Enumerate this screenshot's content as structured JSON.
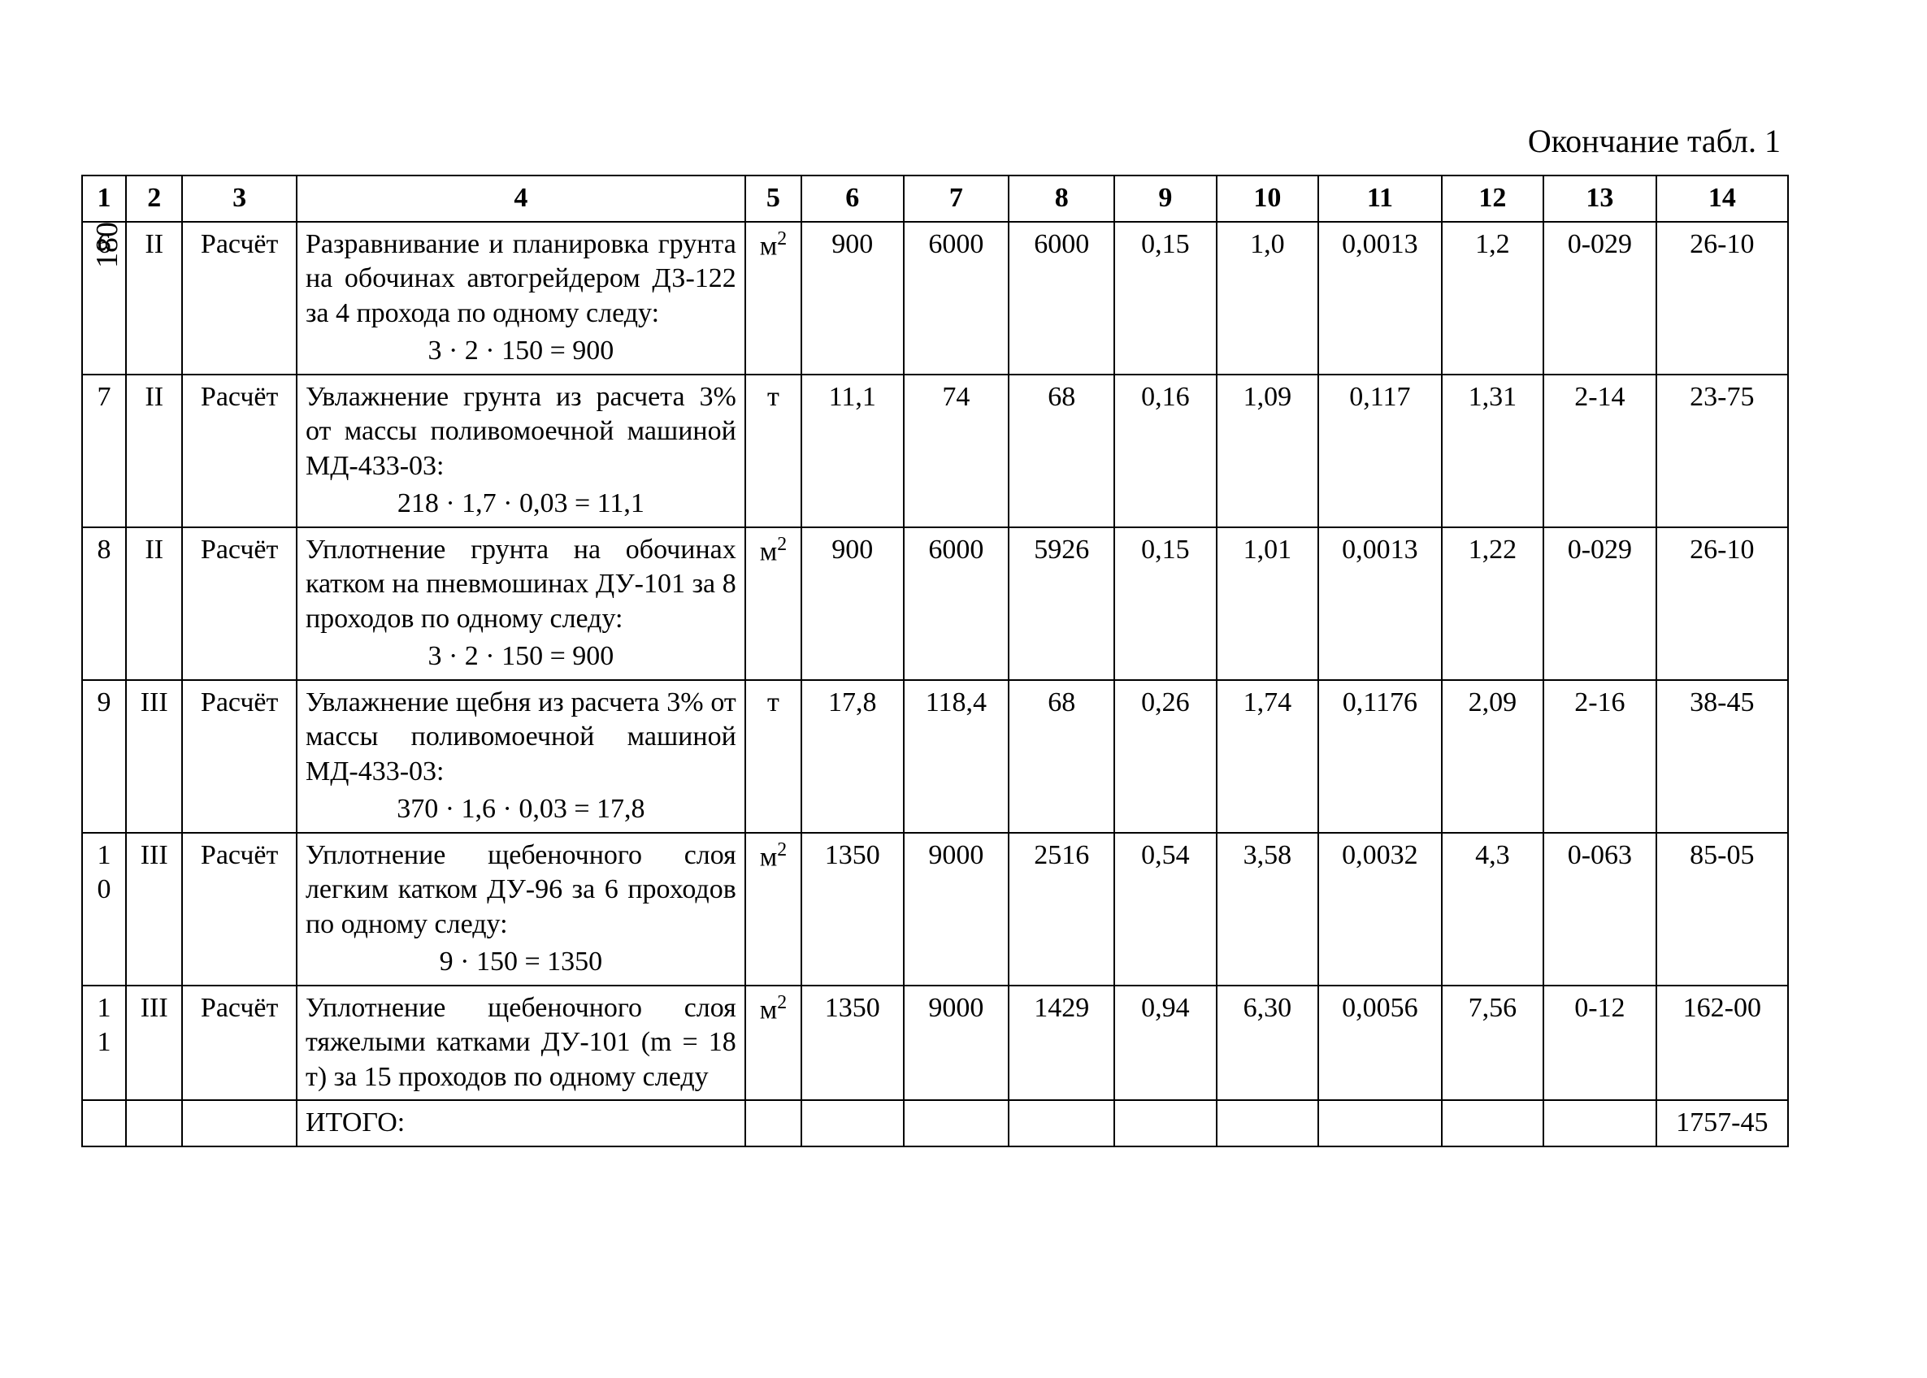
{
  "page_number": "180",
  "caption": "Окончание табл. 1",
  "table": {
    "header": [
      "1",
      "2",
      "3",
      "4",
      "5",
      "6",
      "7",
      "8",
      "9",
      "10",
      "11",
      "12",
      "13",
      "14"
    ],
    "rows": [
      {
        "c1": "6",
        "c2": "II",
        "c3": "Расчёт",
        "c4_text": "Разравнивание и планировка грунта на обочинах автогрейдером ДЗ-122 за 4 прохода по одному следу:",
        "c4_formula": "3 · 2 · 150 = 900",
        "c5_base": "м",
        "c5_sup": "2",
        "c6": "900",
        "c7": "6000",
        "c8": "6000",
        "c9": "0,15",
        "c10": "1,0",
        "c11": "0,0013",
        "c12": "1,2",
        "c13": "0-029",
        "c14": "26-10"
      },
      {
        "c1": "7",
        "c2": "II",
        "c3": "Расчёт",
        "c4_text": "Увлажнение грунта из расчета 3% от массы поливомоечной машиной МД-433-03:",
        "c4_formula": "218 · 1,7 · 0,03 = 11,1",
        "c5_base": "т",
        "c5_sup": "",
        "c6": "11,1",
        "c7": "74",
        "c8": "68",
        "c9": "0,16",
        "c10": "1,09",
        "c11": "0,117",
        "c12": "1,31",
        "c13": "2-14",
        "c14": "23-75"
      },
      {
        "c1": "8",
        "c2": "II",
        "c3": "Расчёт",
        "c4_text": "Уплотнение грунта на обочинах катком на пневмошинах ДУ-101 за 8 проходов по одному следу:",
        "c4_formula": "3 · 2 · 150 = 900",
        "c5_base": "м",
        "c5_sup": "2",
        "c6": "900",
        "c7": "6000",
        "c8": "5926",
        "c9": "0,15",
        "c10": "1,01",
        "c11": "0,0013",
        "c12": "1,22",
        "c13": "0-029",
        "c14": "26-10"
      },
      {
        "c1": "9",
        "c2": "III",
        "c3": "Расчёт",
        "c4_text": "Увлажнение щебня из расчета 3% от массы поливомоечной машиной МД-433-03:",
        "c4_formula": "370 · 1,6 · 0,03 = 17,8",
        "c5_base": "т",
        "c5_sup": "",
        "c6": "17,8",
        "c7": "118,4",
        "c8": "68",
        "c9": "0,26",
        "c10": "1,74",
        "c11": "0,1176",
        "c12": "2,09",
        "c13": "2-16",
        "c14": "38-45"
      },
      {
        "c1": "10",
        "c2": "III",
        "c3": "Расчёт",
        "c4_text": "Уплотнение щебеночного слоя легким катком ДУ-96 за 6 проходов по одному следу:",
        "c4_formula": "9 · 150 = 1350",
        "c5_base": "м",
        "c5_sup": "2",
        "c6": "1350",
        "c7": "9000",
        "c8": "2516",
        "c9": "0,54",
        "c10": "3,58",
        "c11": "0,0032",
        "c12": "4,3",
        "c13": "0-063",
        "c14": "85-05"
      },
      {
        "c1": "11",
        "c2": "III",
        "c3": "Расчёт",
        "c4_text": "Уплотнение щебеночного слоя тяжелыми катками ДУ-101 (m = 18 т) за 15 проходов по одному следу",
        "c4_formula": "",
        "c5_base": "м",
        "c5_sup": "2",
        "c6": "1350",
        "c7": "9000",
        "c8": "1429",
        "c9": "0,94",
        "c10": "6,30",
        "c11": "0,0056",
        "c12": "7,56",
        "c13": "0-12",
        "c14": "162-00"
      }
    ],
    "total_label": "ИТОГО:",
    "total_value": "1757-45"
  }
}
